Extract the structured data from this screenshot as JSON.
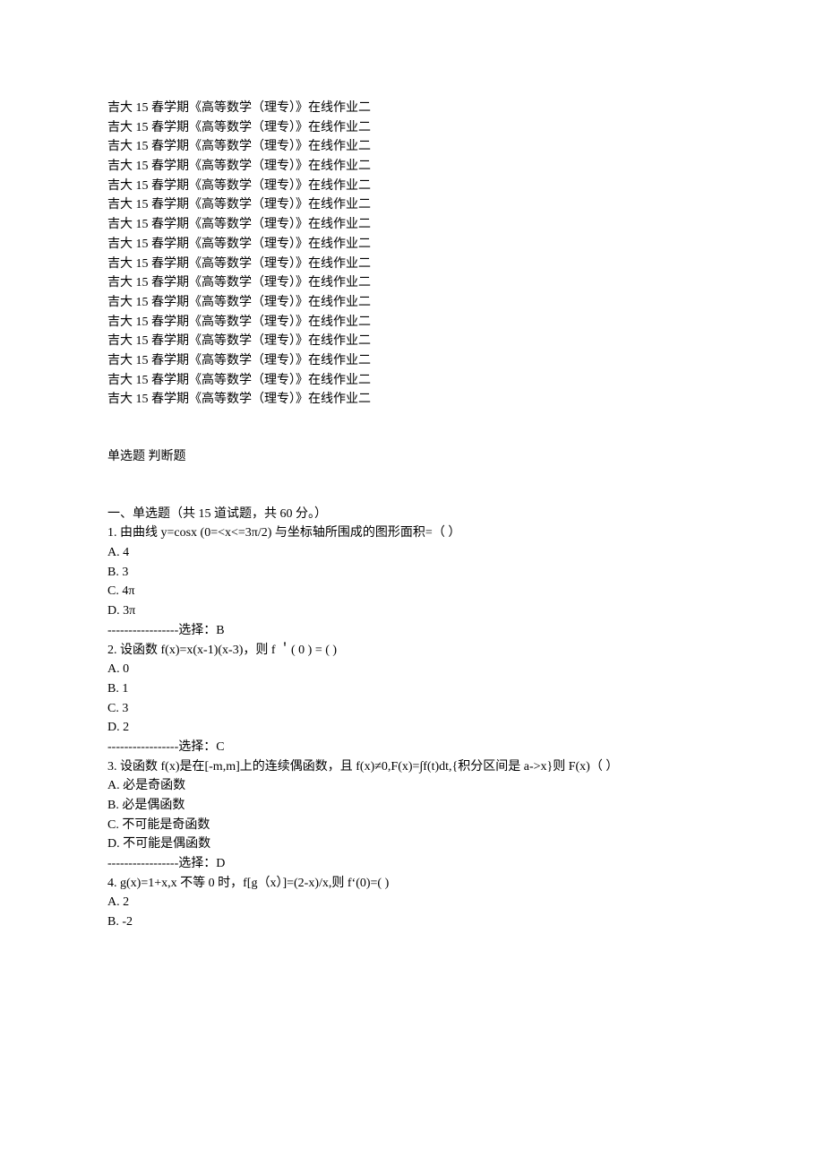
{
  "repeat": {
    "text": "吉大 15 春学期《高等数学（理专）》在线作业二",
    "count": 16
  },
  "section_label": "单选题  判断题",
  "section1": {
    "header": "一、单选题（共  15  道试题，共  60  分。）",
    "questions": [
      {
        "stem": "1.   由曲线 y=cosx (0=<x<=3π/2)  与坐标轴所围成的图形面积=（  ）",
        "options": [
          "A. 4",
          "B. 3",
          "C. 4π",
          "D. 3π"
        ],
        "answer": "-----------------选择：B"
      },
      {
        "stem": "2.   设函数 f(x)=x(x-1)(x-3)，则 f ＇( 0 ) = ( )",
        "options": [
          "A. 0",
          "B. 1",
          "C. 3",
          "D. 2"
        ],
        "answer": "-----------------选择：C"
      },
      {
        "stem": "3.   设函数 f(x)是在[-m,m]上的连续偶函数，且 f(x)≠0,F(x)=∫f(t)dt,{积分区间是 a->x}则 F(x)（ ）",
        "options": [
          "A. 必是奇函数",
          "B. 必是偶函数",
          "C. 不可能是奇函数",
          "D. 不可能是偶函数"
        ],
        "answer": "-----------------选择：D"
      },
      {
        "stem": "4.   g(x)=1+x,x 不等 0 时，f[g（x）]=(2-x)/x,则 f‘(0)=( )",
        "options": [
          "A. 2",
          "B. -2"
        ],
        "answer": null
      }
    ]
  }
}
